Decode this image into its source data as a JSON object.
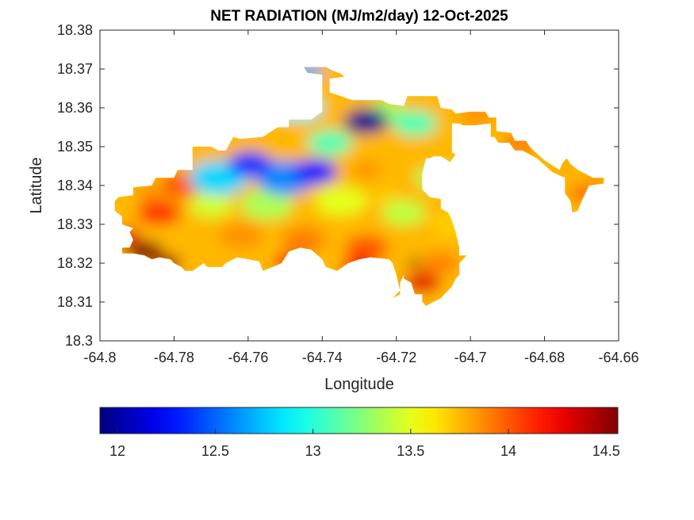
{
  "chart_data": {
    "type": "heatmap",
    "title": "NET RADIATION (MJ/m2/day) 12-Oct-2025",
    "xlabel": "Longitude",
    "ylabel": "Latitude",
    "xlim": [
      -64.8,
      -64.66
    ],
    "ylim": [
      18.3,
      18.38
    ],
    "xticks": [
      -64.8,
      -64.78,
      -64.76,
      -64.74,
      -64.72,
      -64.7,
      -64.68,
      -64.66
    ],
    "xtick_labels": [
      "-64.8",
      "-64.78",
      "-64.76",
      "-64.74",
      "-64.72",
      "-64.7",
      "-64.68",
      "-64.66"
    ],
    "yticks": [
      18.3,
      18.31,
      18.32,
      18.33,
      18.34,
      18.35,
      18.36,
      18.37,
      18.38
    ],
    "ytick_labels": [
      "18.3",
      "18.31",
      "18.32",
      "18.33",
      "18.34",
      "18.35",
      "18.36",
      "18.37",
      "18.38"
    ],
    "grid": false,
    "colormap": "jet",
    "colorbar": {
      "location": "bottom",
      "clim": [
        11.91,
        14.56
      ],
      "ticks": [
        12,
        12.5,
        13,
        13.5,
        14,
        14.5
      ],
      "tick_labels": [
        "12",
        "12.5",
        "13",
        "13.5",
        "14",
        "14.5"
      ]
    },
    "field_points": [
      {
        "lon": -64.7282,
        "lat": 18.3565,
        "value": 11.95,
        "r": 0.006
      },
      {
        "lon": -64.7595,
        "lat": 18.3455,
        "value": 12.35,
        "r": 0.006
      },
      {
        "lon": -64.742,
        "lat": 18.3435,
        "value": 12.3,
        "r": 0.006
      },
      {
        "lon": -64.75,
        "lat": 18.342,
        "value": 12.6,
        "r": 0.008
      },
      {
        "lon": -64.768,
        "lat": 18.342,
        "value": 12.8,
        "r": 0.008
      },
      {
        "lon": -64.746,
        "lat": 18.36,
        "value": 12.9,
        "r": 0.006
      },
      {
        "lon": -64.744,
        "lat": 18.369,
        "value": 12.7,
        "r": 0.004
      },
      {
        "lon": -64.738,
        "lat": 18.351,
        "value": 13.1,
        "r": 0.006
      },
      {
        "lon": -64.715,
        "lat": 18.356,
        "value": 13.1,
        "r": 0.006
      },
      {
        "lon": -64.723,
        "lat": 18.359,
        "value": 13.3,
        "r": 0.005
      },
      {
        "lon": -64.71,
        "lat": 18.342,
        "value": 13.35,
        "r": 0.005
      },
      {
        "lon": -64.77,
        "lat": 18.335,
        "value": 13.45,
        "r": 0.006
      },
      {
        "lon": -64.755,
        "lat": 18.335,
        "value": 13.35,
        "r": 0.007
      },
      {
        "lon": -64.735,
        "lat": 18.336,
        "value": 13.5,
        "r": 0.007
      },
      {
        "lon": -64.718,
        "lat": 18.333,
        "value": 13.4,
        "r": 0.006
      },
      {
        "lon": -64.728,
        "lat": 18.344,
        "value": 13.85,
        "r": 0.004
      },
      {
        "lon": -64.707,
        "lat": 18.342,
        "value": 13.5,
        "r": 0.003
      },
      {
        "lon": -64.705,
        "lat": 18.33,
        "value": 13.7,
        "r": 0.006
      },
      {
        "lon": -64.723,
        "lat": 18.337,
        "value": 13.7,
        "r": 0.004
      },
      {
        "lon": -64.762,
        "lat": 18.327,
        "value": 13.85,
        "r": 0.006
      },
      {
        "lon": -64.745,
        "lat": 18.326,
        "value": 13.9,
        "r": 0.006
      },
      {
        "lon": -64.728,
        "lat": 18.324,
        "value": 14.0,
        "r": 0.006
      },
      {
        "lon": -64.708,
        "lat": 18.32,
        "value": 13.9,
        "r": 0.005
      },
      {
        "lon": -64.778,
        "lat": 18.34,
        "value": 14.0,
        "r": 0.006
      },
      {
        "lon": -64.784,
        "lat": 18.333,
        "value": 14.1,
        "r": 0.006
      },
      {
        "lon": -64.787,
        "lat": 18.338,
        "value": 13.9,
        "r": 0.003
      },
      {
        "lon": -64.748,
        "lat": 18.32,
        "value": 14.25,
        "r": 0.005
      },
      {
        "lon": -64.73,
        "lat": 18.319,
        "value": 14.25,
        "r": 0.005
      },
      {
        "lon": -64.713,
        "lat": 18.315,
        "value": 14.3,
        "r": 0.005
      },
      {
        "lon": -64.715,
        "lat": 18.32,
        "value": 14.55,
        "r": 0.002
      },
      {
        "lon": -64.788,
        "lat": 18.323,
        "value": 14.55,
        "r": 0.005
      },
      {
        "lon": -64.782,
        "lat": 18.32,
        "value": 14.5,
        "r": 0.004
      },
      {
        "lon": -64.793,
        "lat": 18.327,
        "value": 14.3,
        "r": 0.004
      },
      {
        "lon": -64.698,
        "lat": 18.358,
        "value": 13.85,
        "r": 0.005
      },
      {
        "lon": -64.688,
        "lat": 18.351,
        "value": 14.05,
        "r": 0.003
      },
      {
        "lon": -64.684,
        "lat": 18.35,
        "value": 14.25,
        "r": 0.002
      },
      {
        "lon": -64.674,
        "lat": 18.345,
        "value": 13.85,
        "r": 0.002
      },
      {
        "lon": -64.67,
        "lat": 18.338,
        "value": 14.2,
        "r": 0.003
      },
      {
        "lon": -64.666,
        "lat": 18.341,
        "value": 14.05,
        "r": 0.002
      },
      {
        "lon": -64.691,
        "lat": 18.3445,
        "value": 13.3,
        "r": 0.001
      },
      {
        "lon": -64.706,
        "lat": 18.344,
        "value": 13.45,
        "r": 0.002
      }
    ],
    "land_outline_lonlat": [
      [
        -64.764,
        18.3525
      ],
      [
        -64.762,
        18.352
      ],
      [
        -64.756,
        18.3525
      ],
      [
        -64.752,
        18.355
      ],
      [
        -64.749,
        18.355
      ],
      [
        -64.749,
        18.357
      ],
      [
        -64.743,
        18.357
      ],
      [
        -64.74,
        18.359
      ],
      [
        -64.74,
        18.3685
      ],
      [
        -64.744,
        18.369
      ],
      [
        -64.745,
        18.3705
      ],
      [
        -64.739,
        18.3705
      ],
      [
        -64.737,
        18.3695
      ],
      [
        -64.735,
        18.3688
      ],
      [
        -64.734,
        18.368
      ],
      [
        -64.738,
        18.3675
      ],
      [
        -64.738,
        18.364
      ],
      [
        -64.735,
        18.363
      ],
      [
        -64.732,
        18.362
      ],
      [
        -64.724,
        18.362
      ],
      [
        -64.722,
        18.361
      ],
      [
        -64.718,
        18.3605
      ],
      [
        -64.717,
        18.363
      ],
      [
        -64.709,
        18.363
      ],
      [
        -64.708,
        18.36
      ],
      [
        -64.705,
        18.3595
      ],
      [
        -64.704,
        18.3585
      ],
      [
        -64.7,
        18.359
      ],
      [
        -64.696,
        18.359
      ],
      [
        -64.695,
        18.3575
      ],
      [
        -64.693,
        18.3575
      ],
      [
        -64.693,
        18.354
      ],
      [
        -64.689,
        18.3535
      ],
      [
        -64.688,
        18.3515
      ],
      [
        -64.685,
        18.3515
      ],
      [
        -64.684,
        18.35
      ],
      [
        -64.683,
        18.349
      ],
      [
        -64.68,
        18.3465
      ],
      [
        -64.676,
        18.344
      ],
      [
        -64.675,
        18.346
      ],
      [
        -64.674,
        18.347
      ],
      [
        -64.673,
        18.3455
      ],
      [
        -64.671,
        18.344
      ],
      [
        -64.669,
        18.343
      ],
      [
        -64.667,
        18.342
      ],
      [
        -64.664,
        18.342
      ],
      [
        -64.664,
        18.3405
      ],
      [
        -64.668,
        18.34
      ],
      [
        -64.669,
        18.338
      ],
      [
        -64.67,
        18.336
      ],
      [
        -64.671,
        18.3335
      ],
      [
        -64.6725,
        18.333
      ],
      [
        -64.673,
        18.336
      ],
      [
        -64.6745,
        18.338
      ],
      [
        -64.6745,
        18.342
      ],
      [
        -64.678,
        18.3435
      ],
      [
        -64.682,
        18.347
      ],
      [
        -64.686,
        18.349
      ],
      [
        -64.688,
        18.349
      ],
      [
        -64.6895,
        18.351
      ],
      [
        -64.6925,
        18.351
      ],
      [
        -64.6935,
        18.3525
      ],
      [
        -64.6945,
        18.3525
      ],
      [
        -64.6945,
        18.356
      ],
      [
        -64.699,
        18.3555
      ],
      [
        -64.702,
        18.3555
      ],
      [
        -64.703,
        18.356
      ],
      [
        -64.705,
        18.356
      ],
      [
        -64.705,
        18.3485
      ],
      [
        -64.704,
        18.348
      ],
      [
        -64.7055,
        18.346
      ],
      [
        -64.707,
        18.347
      ],
      [
        -64.708,
        18.3475
      ],
      [
        -64.71,
        18.3475
      ],
      [
        -64.711,
        18.347
      ],
      [
        -64.712,
        18.347
      ],
      [
        -64.713,
        18.343
      ],
      [
        -64.713,
        18.339
      ],
      [
        -64.711,
        18.337
      ],
      [
        -64.708,
        18.3365
      ],
      [
        -64.708,
        18.334
      ],
      [
        -64.706,
        18.333
      ],
      [
        -64.705,
        18.331
      ],
      [
        -64.704,
        18.328
      ],
      [
        -64.703,
        18.324
      ],
      [
        -64.703,
        18.322
      ],
      [
        -64.701,
        18.322
      ],
      [
        -64.703,
        18.32
      ],
      [
        -64.703,
        18.317
      ],
      [
        -64.704,
        18.316
      ],
      [
        -64.705,
        18.314
      ],
      [
        -64.707,
        18.312
      ],
      [
        -64.708,
        18.311
      ],
      [
        -64.71,
        18.31
      ],
      [
        -64.712,
        18.309
      ],
      [
        -64.713,
        18.31
      ],
      [
        -64.713,
        18.312
      ],
      [
        -64.715,
        18.312
      ],
      [
        -64.716,
        18.315
      ],
      [
        -64.718,
        18.316
      ],
      [
        -64.718,
        18.317
      ],
      [
        -64.719,
        18.315
      ],
      [
        -64.719,
        18.312
      ],
      [
        -64.721,
        18.311
      ],
      [
        -64.719,
        18.313
      ],
      [
        -64.72,
        18.317
      ],
      [
        -64.721,
        18.32
      ],
      [
        -64.722,
        18.321
      ],
      [
        -64.727,
        18.3215
      ],
      [
        -64.73,
        18.321
      ],
      [
        -64.733,
        18.32
      ],
      [
        -64.736,
        18.318
      ],
      [
        -64.739,
        18.319
      ],
      [
        -64.74,
        18.321
      ],
      [
        -64.743,
        18.3235
      ],
      [
        -64.746,
        18.324
      ],
      [
        -64.749,
        18.323
      ],
      [
        -64.751,
        18.32
      ],
      [
        -64.756,
        18.318
      ],
      [
        -64.757,
        18.3205
      ],
      [
        -64.76,
        18.321
      ],
      [
        -64.763,
        18.3215
      ],
      [
        -64.766,
        18.32
      ],
      [
        -64.767,
        18.319
      ],
      [
        -64.771,
        18.319
      ],
      [
        -64.772,
        18.32
      ],
      [
        -64.775,
        18.318
      ],
      [
        -64.777,
        18.318
      ],
      [
        -64.778,
        18.319
      ],
      [
        -64.78,
        18.32
      ],
      [
        -64.781,
        18.321
      ],
      [
        -64.784,
        18.3215
      ],
      [
        -64.786,
        18.321
      ],
      [
        -64.788,
        18.322
      ],
      [
        -64.791,
        18.3225
      ],
      [
        -64.794,
        18.3225
      ],
      [
        -64.794,
        18.324
      ],
      [
        -64.792,
        18.324
      ],
      [
        -64.791,
        18.326
      ],
      [
        -64.792,
        18.328
      ],
      [
        -64.791,
        18.329
      ],
      [
        -64.794,
        18.33
      ],
      [
        -64.794,
        18.332
      ],
      [
        -64.796,
        18.3335
      ],
      [
        -64.796,
        18.336
      ],
      [
        -64.795,
        18.337
      ],
      [
        -64.791,
        18.3375
      ],
      [
        -64.791,
        18.3395
      ],
      [
        -64.786,
        18.34
      ],
      [
        -64.785,
        18.342
      ],
      [
        -64.78,
        18.342
      ],
      [
        -64.779,
        18.344
      ],
      [
        -64.775,
        18.344
      ],
      [
        -64.775,
        18.35
      ],
      [
        -64.77,
        18.35
      ],
      [
        -64.768,
        18.349
      ],
      [
        -64.766,
        18.349
      ],
      [
        -64.764,
        18.3525
      ]
    ]
  }
}
